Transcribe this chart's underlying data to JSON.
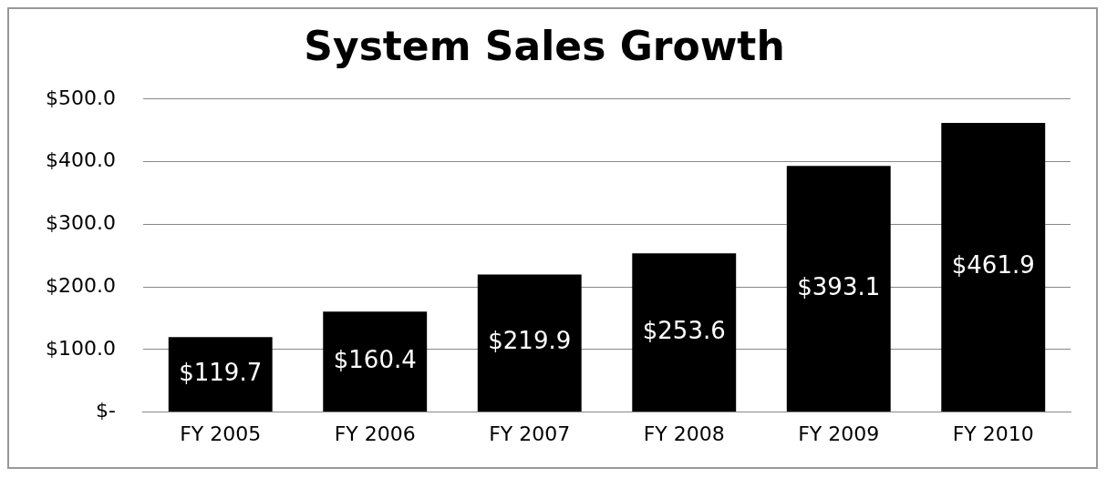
{
  "chart_data": {
    "type": "bar",
    "title": "System Sales Growth",
    "categories": [
      "FY 2005",
      "FY 2006",
      "FY 2007",
      "FY 2008",
      "FY 2009",
      "FY 2010"
    ],
    "values": [
      119.7,
      160.4,
      219.9,
      253.6,
      393.1,
      461.9
    ],
    "value_labels": [
      "$119.7",
      "$160.4",
      "$219.9",
      "$253.6",
      "$393.1",
      "$461.9"
    ],
    "color": "#000000",
    "ylim": [
      0,
      500
    ],
    "yticks": [
      {
        "value": 0,
        "label": "$-"
      },
      {
        "value": 100,
        "label": "$100.0"
      },
      {
        "value": 200,
        "label": "$200.0"
      },
      {
        "value": 300,
        "label": "$300.0"
      },
      {
        "value": 400,
        "label": "$400.0"
      },
      {
        "value": 500,
        "label": "$500.0"
      }
    ],
    "grid": "y",
    "legend": false
  }
}
